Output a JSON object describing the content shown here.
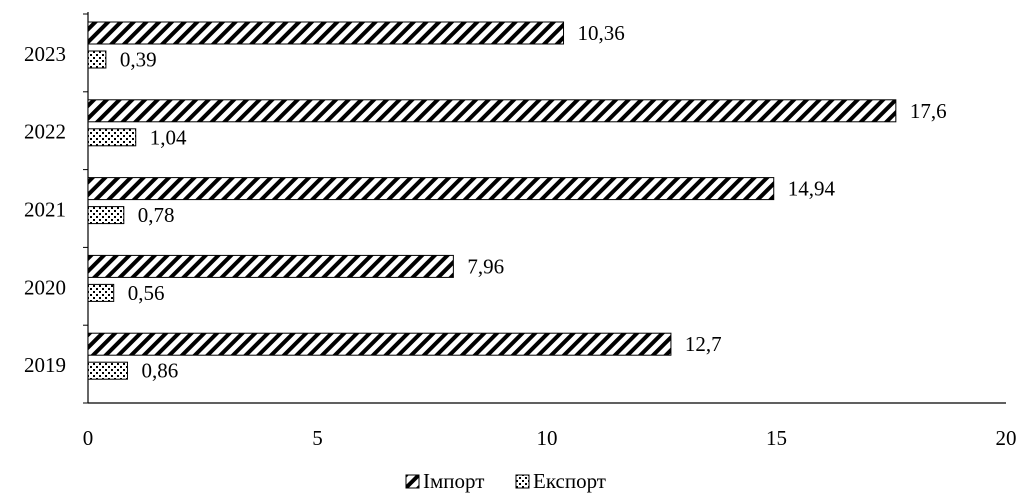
{
  "chart_data": {
    "type": "bar",
    "orientation": "horizontal",
    "categories": [
      "2019",
      "2020",
      "2021",
      "2022",
      "2023"
    ],
    "series": [
      {
        "name": "Імпорт",
        "values": [
          12.7,
          7.96,
          14.94,
          17.6,
          10.36
        ],
        "value_labels": [
          "12,7",
          "7,96",
          "14,94",
          "17,6",
          "10,36"
        ],
        "pattern": "diagonal-hatch"
      },
      {
        "name": "Експорт",
        "values": [
          0.86,
          0.56,
          0.78,
          1.04,
          0.39
        ],
        "value_labels": [
          "0,86",
          "0,56",
          "0,78",
          "1,04",
          "0,39"
        ],
        "pattern": "dotted"
      }
    ],
    "xlim": [
      0,
      20
    ],
    "x_ticks": [
      0,
      5,
      10,
      15,
      20
    ],
    "title": "",
    "xlabel": "",
    "ylabel": "",
    "grid": false,
    "legend_position": "bottom-center",
    "colors": {
      "ink": "#000000",
      "background": "#ffffff"
    }
  }
}
